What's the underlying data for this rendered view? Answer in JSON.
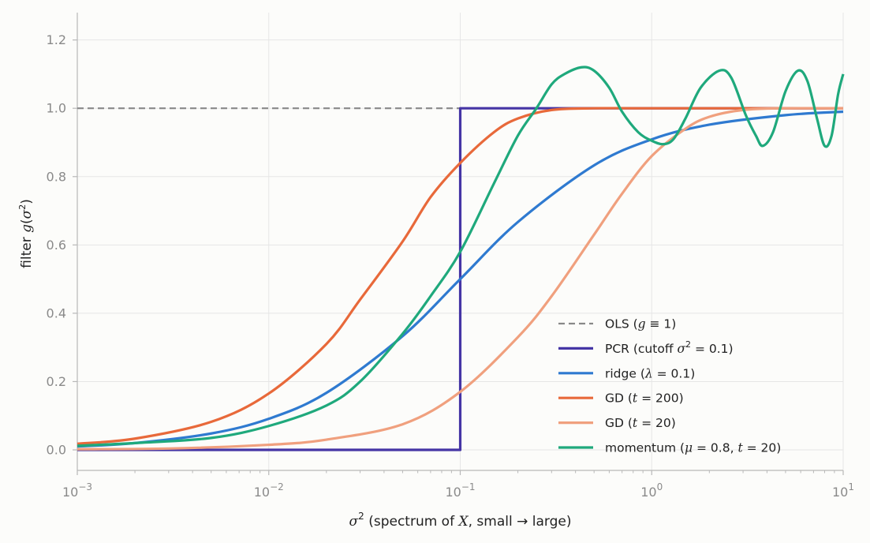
{
  "chart_data": {
    "type": "line",
    "xscale": "log",
    "xlim": [
      0.001,
      10
    ],
    "ylim": [
      -0.06,
      1.28
    ],
    "grid": true,
    "legend_position": "lower-right",
    "xlabel": "σ²   (spectrum of X, small → large)",
    "ylabel": "filter  g(σ²)",
    "x_ticks": [
      {
        "value": 0.001,
        "base": "10",
        "exp": "−3"
      },
      {
        "value": 0.01,
        "base": "10",
        "exp": "−2"
      },
      {
        "value": 0.1,
        "base": "10",
        "exp": "−1"
      },
      {
        "value": 1,
        "base": "10",
        "exp": "0"
      },
      {
        "value": 10,
        "base": "10",
        "exp": "1"
      }
    ],
    "y_ticks": [
      {
        "value": 0.0,
        "label": "0.0"
      },
      {
        "value": 0.2,
        "label": "0.2"
      },
      {
        "value": 0.4,
        "label": "0.4"
      },
      {
        "value": 0.6,
        "label": "0.6"
      },
      {
        "value": 0.8,
        "label": "0.8"
      },
      {
        "value": 1.0,
        "label": "1.0"
      },
      {
        "value": 1.2,
        "label": "1.2"
      }
    ],
    "series": [
      {
        "name": "OLS  (g ≡ 1)",
        "color": "#888888",
        "dash": true,
        "x": [
          0.001,
          10
        ],
        "y": [
          1.0,
          1.0
        ]
      },
      {
        "name": "PCR  (cutoff σ² = 0.1)",
        "color": "#4535a5",
        "x": [
          0.001,
          0.1,
          0.1,
          10
        ],
        "y": [
          0.0,
          0.0,
          1.0,
          1.0
        ]
      },
      {
        "name": "ridge  (λ = 0.1)",
        "color": "#2f7ad0",
        "x": [
          0.001,
          0.002,
          0.005,
          0.01,
          0.02,
          0.05,
          0.1,
          0.2,
          0.5,
          1,
          2,
          5,
          10
        ],
        "y": [
          0.01,
          0.02,
          0.048,
          0.091,
          0.167,
          0.333,
          0.5,
          0.667,
          0.833,
          0.909,
          0.952,
          0.98,
          0.99
        ]
      },
      {
        "name": "GD  (t = 200)",
        "color": "#e8693a",
        "x": [
          0.001,
          0.002,
          0.005,
          0.01,
          0.02,
          0.03,
          0.05,
          0.07,
          0.1,
          0.15,
          0.2,
          0.3,
          0.5,
          1,
          10
        ],
        "y": [
          0.018,
          0.033,
          0.082,
          0.165,
          0.31,
          0.44,
          0.61,
          0.74,
          0.84,
          0.93,
          0.97,
          0.995,
          1.0,
          1.0,
          1.0
        ]
      },
      {
        "name": "GD  (t = 20)",
        "color": "#f0a07e",
        "x": [
          0.001,
          0.003,
          0.01,
          0.02,
          0.05,
          0.1,
          0.2,
          0.3,
          0.5,
          0.7,
          1,
          1.5,
          2,
          3,
          5,
          10
        ],
        "y": [
          0.002,
          0.004,
          0.015,
          0.03,
          0.075,
          0.17,
          0.33,
          0.45,
          0.63,
          0.75,
          0.86,
          0.94,
          0.975,
          0.995,
          1.0,
          1.0
        ]
      },
      {
        "name": "momentum  (μ = 0.8, t = 20)",
        "color": "#1fa97c",
        "x": [
          0.001,
          0.002,
          0.005,
          0.01,
          0.02,
          0.03,
          0.05,
          0.07,
          0.1,
          0.15,
          0.2,
          0.25,
          0.3,
          0.35,
          0.43,
          0.5,
          0.6,
          0.7,
          0.85,
          1.0,
          1.15,
          1.3,
          1.5,
          1.8,
          2.25,
          2.6,
          3.1,
          3.5,
          3.8,
          4.3,
          5.0,
          5.8,
          6.5,
          7.3,
          8.0,
          8.7,
          9.4,
          10
        ],
        "y": [
          0.012,
          0.02,
          0.035,
          0.07,
          0.13,
          0.2,
          0.34,
          0.45,
          0.58,
          0.78,
          0.92,
          1.0,
          1.07,
          1.1,
          1.12,
          1.11,
          1.06,
          0.99,
          0.93,
          0.905,
          0.895,
          0.91,
          0.97,
          1.06,
          1.11,
          1.09,
          0.98,
          0.92,
          0.89,
          0.93,
          1.05,
          1.11,
          1.08,
          0.97,
          0.89,
          0.92,
          1.04,
          1.1
        ]
      }
    ],
    "legend_items": [
      {
        "key": "ols",
        "color": "#888888",
        "dash": true,
        "pre": "OLS  (",
        "ital": "g",
        "post": " ≡ 1)"
      },
      {
        "key": "pcr",
        "color": "#4535a5",
        "pre": "PCR  (cutoff ",
        "ital": "σ",
        "sup": "2",
        "post": " = 0.1)"
      },
      {
        "key": "ridge",
        "color": "#2f7ad0",
        "pre": "ridge  (",
        "ital": "λ",
        "post": " = 0.1)"
      },
      {
        "key": "gd200",
        "color": "#e8693a",
        "pre": "GD  (",
        "ital": "t",
        "post": " = 200)"
      },
      {
        "key": "gd20",
        "color": "#f0a07e",
        "pre": "GD  (",
        "ital": "t",
        "post": " = 20)"
      },
      {
        "key": "momentum",
        "color": "#1fa97c",
        "pre": "momentum  (",
        "ital": "μ",
        "post": " = 0.8, ",
        "ital2": "t",
        "post2": " = 20)"
      }
    ],
    "xlabel_parts": {
      "ital": "σ",
      "sup": "2",
      "mid": "   (spectrum of ",
      "ital2": "X",
      "post": ", small → large)"
    },
    "ylabel_parts": {
      "pre": "filter  ",
      "ital": "g",
      "open": "(",
      "ital2": "σ",
      "sup": "2",
      "close": ")"
    }
  }
}
